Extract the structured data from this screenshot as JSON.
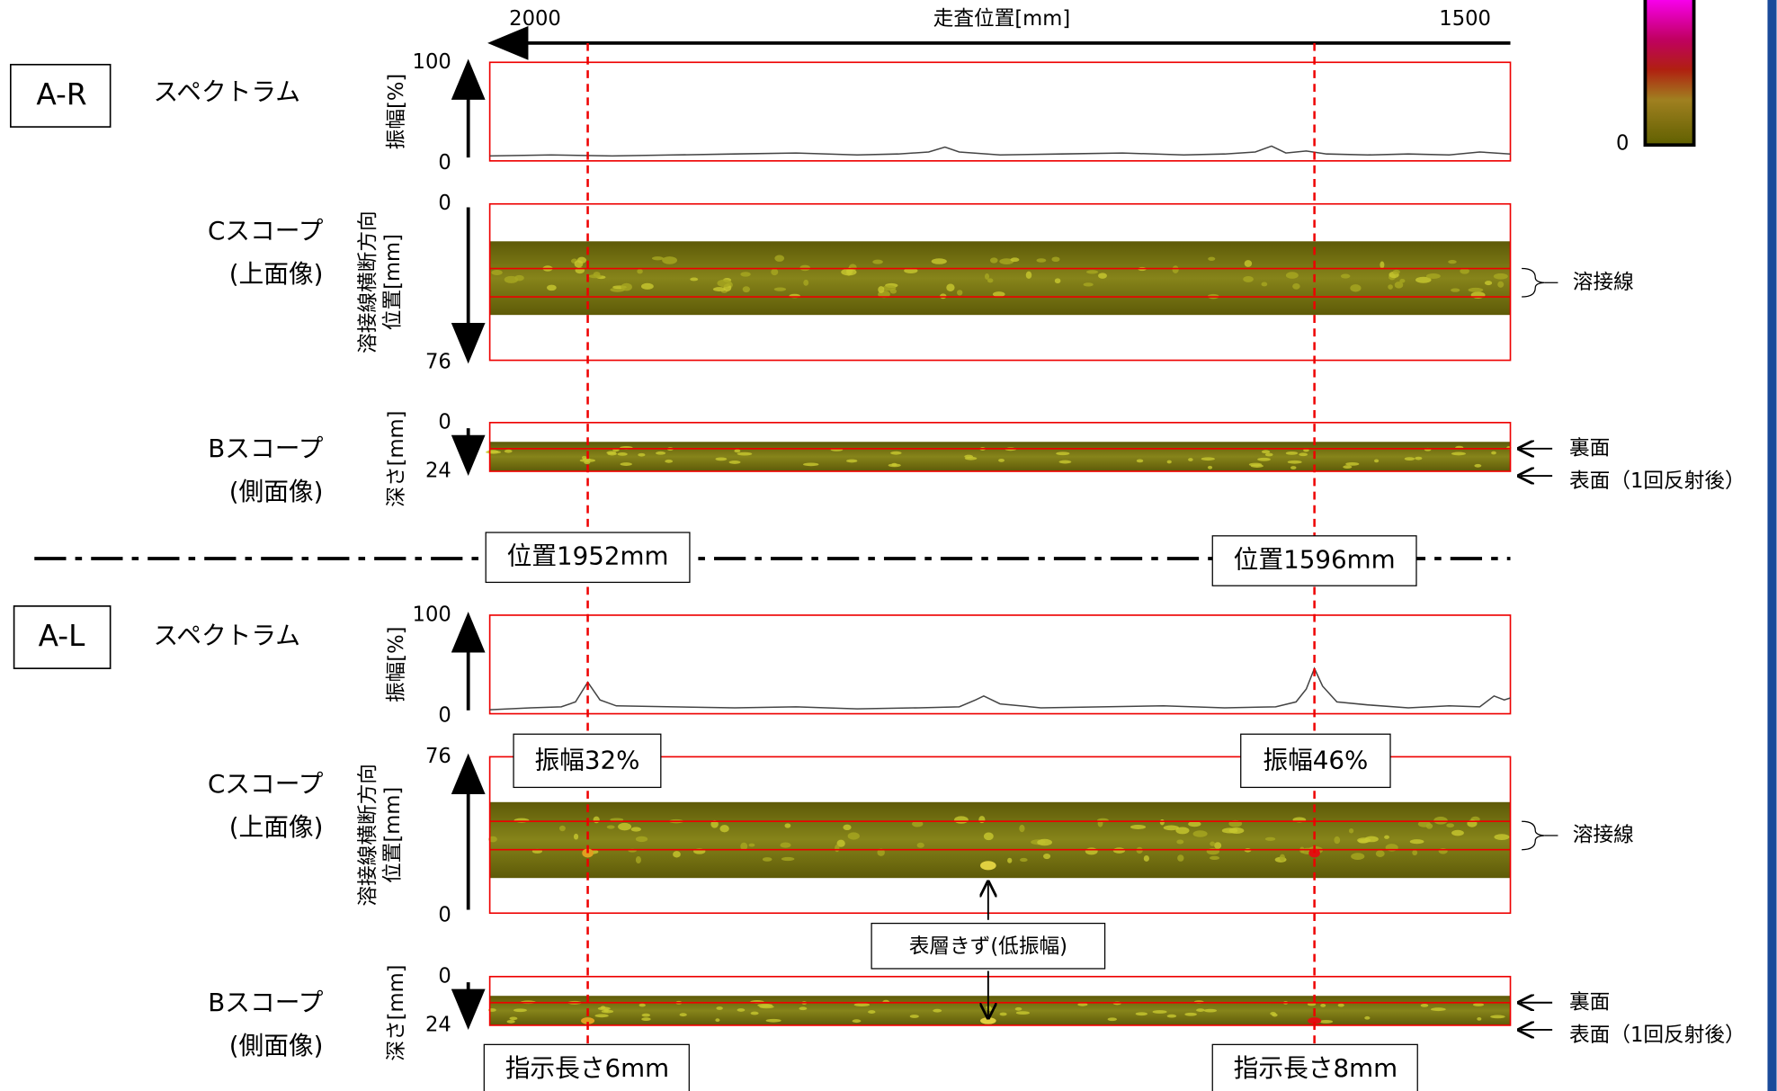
{
  "scan_axis": {
    "label": "走査位置[mm]",
    "xlim": [
      2000,
      1500
    ],
    "xticks": [
      2000,
      1500
    ]
  },
  "colorbar": {
    "min": "0"
  },
  "markers": [
    {
      "value": 1952,
      "label": "位置1952mm"
    },
    {
      "value": 1596,
      "label": "位置1596mm"
    }
  ],
  "sections": [
    {
      "name": "A-R",
      "spectrum": {
        "label": "スペクトラム",
        "axis": "振幅[%]",
        "ylim": [
          0,
          100
        ],
        "yticks": [
          100,
          0
        ],
        "x": [
          2000,
          1970,
          1940,
          1910,
          1880,
          1850,
          1820,
          1800,
          1785,
          1777,
          1770,
          1750,
          1720,
          1690,
          1660,
          1640,
          1625,
          1617,
          1610,
          1600,
          1590,
          1570,
          1550,
          1530,
          1515,
          1500
        ],
        "values": [
          5,
          6,
          5,
          6,
          7,
          8,
          6,
          7,
          9,
          14,
          9,
          6,
          7,
          8,
          6,
          7,
          9,
          15,
          8,
          10,
          7,
          6,
          7,
          6,
          9,
          7
        ]
      },
      "cscope": {
        "label": [
          "Cスコープ",
          "(上面像)"
        ],
        "axis": [
          "溶接線横断方向",
          "位置[mm]"
        ],
        "yticks": [
          0,
          76
        ],
        "note": "溶接線"
      },
      "bscope": {
        "label": [
          "Bスコープ",
          "(側面像)"
        ],
        "axis": "深さ[mm]",
        "yticks": [
          0,
          24
        ],
        "notes": [
          "裏面",
          "表面（1回反射後）"
        ]
      }
    },
    {
      "name": "A-L",
      "spectrum": {
        "label": "スペクトラム",
        "axis": "振幅[%]",
        "ylim": [
          0,
          100
        ],
        "yticks": [
          100,
          0
        ],
        "x": [
          2000,
          1980,
          1965,
          1958,
          1952,
          1946,
          1938,
          1910,
          1880,
          1850,
          1820,
          1790,
          1770,
          1762,
          1758,
          1750,
          1730,
          1700,
          1670,
          1640,
          1615,
          1605,
          1600,
          1596,
          1592,
          1585,
          1570,
          1550,
          1530,
          1515,
          1508,
          1503,
          1500
        ],
        "values": [
          4,
          6,
          7,
          12,
          32,
          14,
          8,
          7,
          6,
          7,
          5,
          6,
          7,
          14,
          18,
          10,
          6,
          7,
          8,
          6,
          7,
          12,
          25,
          46,
          28,
          12,
          9,
          6,
          8,
          7,
          18,
          14,
          16
        ]
      },
      "cscope": {
        "label": [
          "Cスコープ",
          "(上面像)"
        ],
        "axis": [
          "溶接線横断方向",
          "位置[mm]"
        ],
        "yticks": [
          76,
          0
        ],
        "note": "溶接線"
      },
      "bscope": {
        "label": [
          "Bスコープ",
          "(側面像)"
        ],
        "axis": "深さ[mm]",
        "yticks": [
          0,
          24
        ],
        "notes": [
          "裏面",
          "表面（1回反射後）"
        ]
      }
    }
  ],
  "amplitudes": [
    "振幅32%",
    "振幅46%"
  ],
  "surface_flaw": "表層きず(低振幅)",
  "lengths": [
    "指示長さ6mm",
    "指示長さ8mm"
  ]
}
